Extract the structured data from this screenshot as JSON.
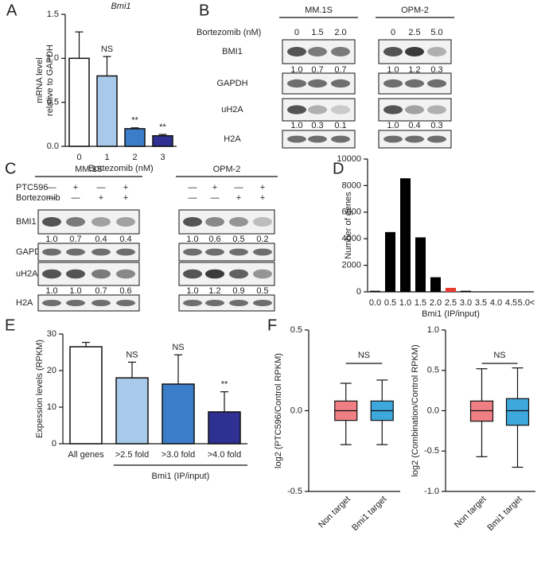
{
  "panel_labels": [
    "A",
    "B",
    "C",
    "D",
    "E",
    "F"
  ],
  "chart_data": [
    {
      "type": "bar",
      "title": "Bmi1",
      "y_label": [
        "mRNA level",
        "relative to GAPDH"
      ],
      "x_label": "Bortezomib (nM)",
      "categories": [
        "0",
        "1",
        "2",
        "3"
      ],
      "values": [
        1.0,
        0.8,
        0.2,
        0.12
      ],
      "errors": [
        0.3,
        0.22,
        0.01,
        0.015
      ],
      "colors": [
        "#ffffff",
        "#a9c9ea",
        "#3b7dc8",
        "#2e3192"
      ],
      "annotations": [
        null,
        "NS",
        "**",
        "**"
      ],
      "ylim": [
        0,
        1.5
      ],
      "yticks": [
        {
          "value": 0,
          "label": "0.0"
        },
        0.5,
        {
          "value": 1,
          "label": "1.0"
        },
        1.5
      ]
    },
    {
      "type": "bar",
      "y_label": "Number of genes",
      "x_label": "Bmi1 (IP/input)",
      "categories": [
        "0.0",
        "0.5",
        "1.0",
        "1.5",
        "2.0",
        "2.5",
        "3.0",
        "3.5",
        "4.0",
        "4.5",
        "5.0<"
      ],
      "values": [
        80,
        4500,
        8550,
        4100,
        1100,
        300,
        80,
        30,
        10,
        5,
        5
      ],
      "colors": [
        "#000000",
        "#000000",
        "#000000",
        "#000000",
        "#000000",
        "#e8382f",
        "#000000",
        "#000000",
        "#000000",
        "#000000",
        "#000000"
      ],
      "ylim": [
        0,
        10000
      ],
      "yticks": [
        0,
        2000,
        4000,
        6000,
        8000,
        10000
      ]
    },
    {
      "type": "bar",
      "y_label": "Expession levels (RPKM)",
      "group_label": "Bmi1 (IP/input)",
      "categories": [
        "All genes",
        ">2.5 fold",
        ">3.0 fold",
        ">4.0 fold"
      ],
      "values": [
        26.5,
        18,
        16.3,
        8.7
      ],
      "errors": [
        1.2,
        4.3,
        8,
        5.5
      ],
      "colors": [
        "#ffffff",
        "#a9c9ea",
        "#3b7dc8",
        "#2e3192"
      ],
      "annotations": [
        null,
        "NS",
        "NS",
        "**"
      ],
      "ylim": [
        0,
        30
      ],
      "yticks": [
        0,
        10,
        20,
        30
      ]
    },
    {
      "type": "box",
      "y_label": "log2 (PTC596/Control RPKM)",
      "annotation": "NS",
      "boxes": [
        {
          "name": "Non target",
          "color": "#f07f84",
          "min": -0.21,
          "q1": -0.06,
          "median": 0,
          "q3": 0.06,
          "max": 0.17
        },
        {
          "name": "Bmi1 target",
          "color": "#3ea7dc",
          "min": -0.21,
          "q1": -0.06,
          "median": 0,
          "q3": 0.06,
          "max": 0.19
        }
      ],
      "ylim": [
        -0.5,
        0.5
      ],
      "yticks": [
        -0.5,
        {
          "value": 0,
          "label": "0.0"
        },
        0.5
      ]
    },
    {
      "type": "box",
      "y_label": "log2 (Combination/Control RPKM)",
      "annotation": "NS",
      "boxes": [
        {
          "name": "Non target",
          "color": "#f07f84",
          "min": -0.57,
          "q1": -0.13,
          "median": 0,
          "q3": 0.12,
          "max": 0.52
        },
        {
          "name": "Bmi1 target",
          "color": "#3ea7dc",
          "min": -0.7,
          "q1": -0.18,
          "median": 0,
          "q3": 0.15,
          "max": 0.53
        }
      ],
      "ylim": [
        -1,
        1
      ],
      "yticks": [
        {
          "value": -1,
          "label": "-1.0"
        },
        -0.5,
        {
          "value": 0,
          "label": "0.0"
        },
        0.5,
        {
          "value": 1,
          "label": "1.0"
        }
      ]
    }
  ],
  "blots": [
    {
      "groups": [
        "MM.1S",
        "OPM-2"
      ],
      "treatments": [
        {
          "label": "Bortezomib (nM)",
          "lanes": [
            "0",
            "1.5",
            "2.0",
            "0",
            "2.5",
            "5.0"
          ]
        }
      ],
      "rows": [
        {
          "label": "BMI1",
          "quant": [
            "1.0",
            "0.7",
            "0.7",
            "1.0",
            "1.2",
            "0.3"
          ]
        },
        {
          "label": "GAPDH"
        },
        {
          "label": "uH2A",
          "quant": [
            "1.0",
            "0.3",
            "0.1",
            "1.0",
            "0.4",
            "0.3"
          ]
        },
        {
          "label": "H2A"
        }
      ]
    },
    {
      "groups": [
        "MM.1S",
        "OPM-2"
      ],
      "treatments": [
        {
          "label": "PTC596",
          "lanes": [
            "—",
            "+",
            "—",
            "+",
            "—",
            "+",
            "—",
            "+"
          ]
        },
        {
          "label": "Bortezomib",
          "lanes": [
            "—",
            "—",
            "+",
            "+",
            "—",
            "—",
            "+",
            "+"
          ]
        }
      ],
      "rows": [
        {
          "label": "BMI1",
          "quant": [
            "1.0",
            "0.7",
            "0.4",
            "0.4",
            "1.0",
            "0.6",
            "0.5",
            "0.2"
          ]
        },
        {
          "label": "GAPDH"
        },
        {
          "label": "uH2A",
          "quant": [
            "1.0",
            "1.0",
            "0.7",
            "0.6",
            "1.0",
            "1.2",
            "0.9",
            "0.5"
          ]
        },
        {
          "label": "H2A"
        }
      ]
    }
  ]
}
